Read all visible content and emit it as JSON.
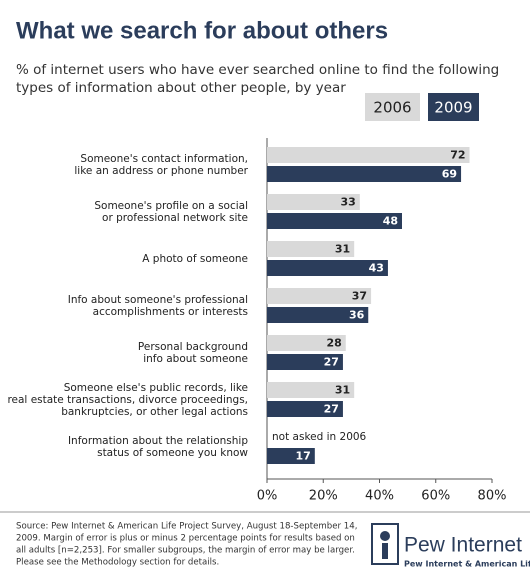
{
  "chart_data": {
    "type": "bar",
    "orientation": "horizontal",
    "title": "What we search for about others",
    "subtitle": [
      "% of internet users who have ever searched online to find the following",
      "types of information about other people, by year"
    ],
    "categories": [
      [
        "Someone's contact information,",
        "like an address or phone number"
      ],
      [
        "Someone's profile on a social",
        "or professional network site"
      ],
      [
        "A photo of someone"
      ],
      [
        "Info about someone's professional",
        "accomplishments or interests"
      ],
      [
        "Personal background",
        "info about someone"
      ],
      [
        "Someone else's public records, like",
        "real estate transactions, divorce proceedings,",
        "bankruptcies, or other legal actions"
      ],
      [
        "Information about the relationship",
        "status of someone you know"
      ]
    ],
    "series": [
      {
        "name": "2006",
        "color": "#d9d9d9",
        "values": [
          72,
          33,
          31,
          37,
          28,
          31,
          null
        ]
      },
      {
        "name": "2009",
        "color": "#2b3d5b",
        "values": [
          69,
          48,
          43,
          36,
          27,
          27,
          17
        ]
      }
    ],
    "annotation": "not asked in 2006",
    "xlim": [
      0,
      80
    ],
    "xticks": [
      {
        "value": 0,
        "label": "0%"
      },
      {
        "value": 20,
        "label": "20%"
      },
      {
        "value": 40,
        "label": "40%"
      },
      {
        "value": 60,
        "label": "60%"
      },
      {
        "value": 80,
        "label": "80%"
      }
    ],
    "source": [
      "Source: Pew Internet & American Life Project Survey, August 18-September 14,",
      "2009. Margin of error is plus or minus 2 percentage points for results based on",
      "all adults [n=2,253]. For smaller subgroups, the margin of error may be larger.",
      "Please see the Methodology section for details."
    ],
    "logo": [
      "Pew Internet",
      "Pew Internet & American Life Project"
    ]
  }
}
